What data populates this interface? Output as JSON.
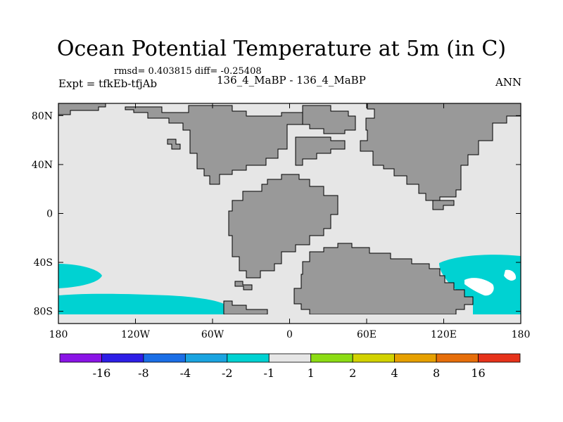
{
  "title": "Ocean Potential Temperature at 5m (in C)",
  "stats": "rmsd= 0.403815 diff= -0.25408",
  "expt": "Expt = tfkEb-tfjAb",
  "center_label": "136_4_MaBP - 136_4_MaBP",
  "season": "ANN",
  "map": {
    "lon_range": [
      -180,
      180
    ],
    "lat_range": [
      -90,
      90
    ],
    "lat_ticks": [
      {
        "v": 80,
        "label": "80N"
      },
      {
        "v": 40,
        "label": "40N"
      },
      {
        "v": 0,
        "label": "0"
      },
      {
        "v": -40,
        "label": "40S"
      },
      {
        "v": -80,
        "label": "80S"
      }
    ],
    "lon_ticks": [
      {
        "v": -180,
        "label": "180"
      },
      {
        "v": -120,
        "label": "120W"
      },
      {
        "v": -60,
        "label": "60W"
      },
      {
        "v": 0,
        "label": "0"
      },
      {
        "v": 60,
        "label": "60E"
      },
      {
        "v": 120,
        "label": "120E"
      },
      {
        "v": 180,
        "label": "180"
      }
    ],
    "ocean_color": "#e6e6e6",
    "land_color": "#999999",
    "anomaly_color": "#00d2d2"
  },
  "colorbar": {
    "colors": [
      "#8a14e6",
      "#2d1ee6",
      "#1a6ee6",
      "#1aa4e0",
      "#00d2d2",
      "#e6e6e6",
      "#8cdc14",
      "#d2d200",
      "#e6a000",
      "#e66e0a",
      "#e6321a"
    ],
    "labels": [
      "-16",
      "-8",
      "-4",
      "-2",
      "-1",
      "1",
      "2",
      "4",
      "8",
      "16"
    ]
  }
}
